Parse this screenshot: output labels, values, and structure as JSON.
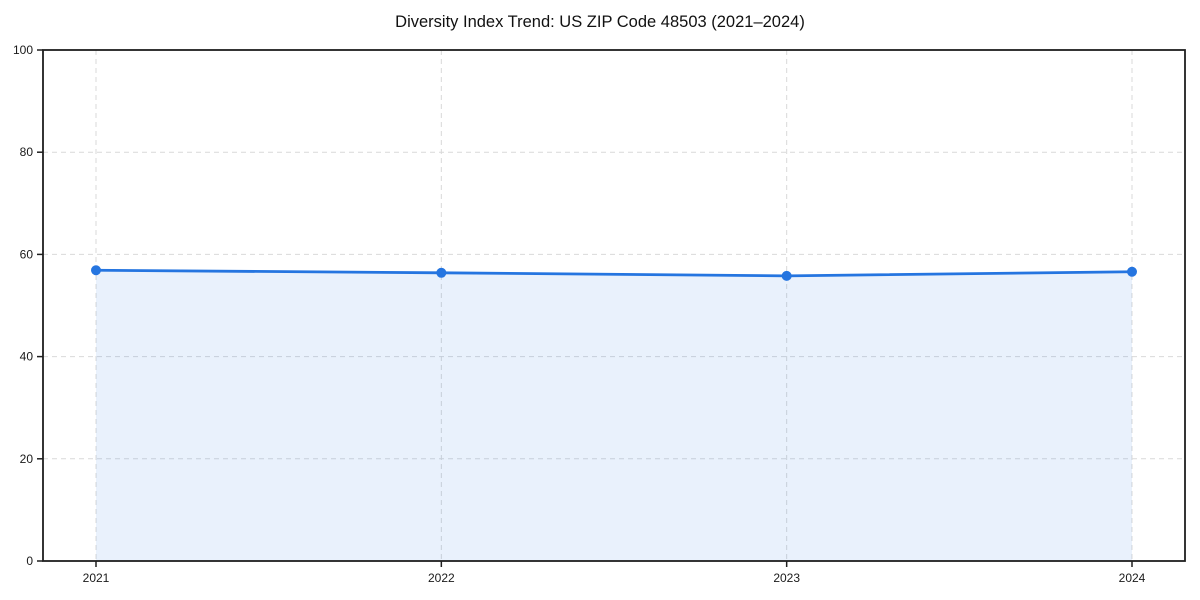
{
  "page": {
    "background": "#ffffff"
  },
  "chart_data": {
    "type": "area",
    "title": "Diversity Index Trend: US ZIP Code 48503 (2021–2024)",
    "x": [
      2021,
      2022,
      2023,
      2024
    ],
    "xticks": [
      "2021",
      "2022",
      "2023",
      "2024"
    ],
    "series": [
      {
        "name": "Diversity Index",
        "values": [
          56.9,
          56.4,
          55.8,
          56.6
        ]
      }
    ],
    "xlabel": "",
    "ylabel": "",
    "ylim": [
      0,
      100
    ],
    "yticks": [
      0,
      20,
      40,
      60,
      80,
      100
    ],
    "grid": "dashed",
    "legend": "none",
    "colors": {
      "line": "#2575e0",
      "marker": "#2575e0",
      "fill": "#2575e0",
      "fill_opacity": 0.1,
      "gridline": "#d9d9d9",
      "spine": "#1f1f1f",
      "tick_label": "#1a1a1a",
      "title": "#111111",
      "background": "#ffffff"
    }
  }
}
